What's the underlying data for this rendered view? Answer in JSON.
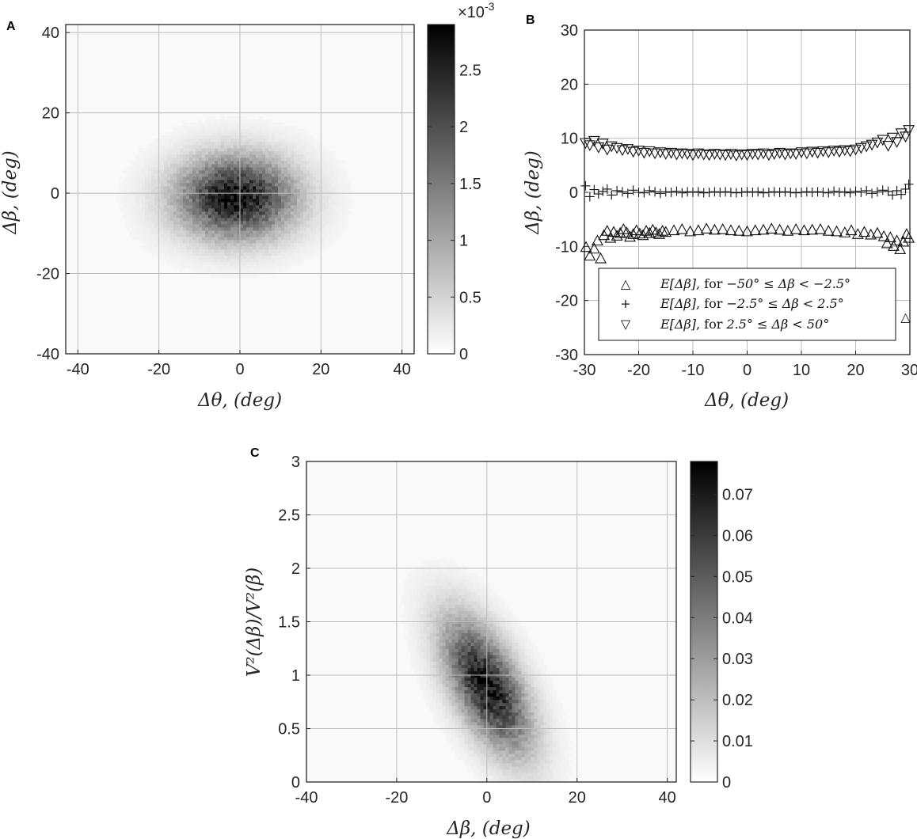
{
  "chart_data": [
    {
      "panel": "A",
      "type": "heatmap",
      "xlabel": "Δθ, (deg)",
      "ylabel": "Δβ, (deg)",
      "xlim": [
        -43,
        43
      ],
      "ylim": [
        -40,
        42
      ],
      "xticks": [
        -40,
        -20,
        0,
        20,
        40
      ],
      "yticks": [
        -40,
        -20,
        0,
        20,
        40
      ],
      "grid": true,
      "density": {
        "center": [
          -1,
          -1
        ],
        "sd": [
          10,
          7
        ],
        "correlation": 0,
        "peak": 0.0027
      },
      "colorbar": {
        "min": 0,
        "max": 0.0029,
        "ticks": [
          0,
          0.5,
          1,
          1.5,
          2,
          2.5
        ],
        "multiplier": "×10",
        "exponent": "-3"
      }
    },
    {
      "panel": "B",
      "type": "scatter",
      "xlabel": "Δθ, (deg)",
      "ylabel": "Δβ, (deg)",
      "xlim": [
        -30,
        30
      ],
      "ylim": [
        -30,
        30
      ],
      "xticks": [
        -30,
        -20,
        -10,
        0,
        10,
        20,
        30
      ],
      "yticks": [
        -30,
        -20,
        -10,
        0,
        10,
        20,
        30
      ],
      "grid": true,
      "legend_position": "bottom-right",
      "series": [
        {
          "name": "E[Δβ], for −50° ≤ Δβ < −2.5°",
          "marker": "triangle-up",
          "x": [
            -29.7,
            -29,
            -28.2,
            -27.6,
            -27,
            -26.4,
            -25.8,
            -25.2,
            -24.6,
            -24,
            -23.4,
            -22.8,
            -22.2,
            -21.6,
            -21,
            -20.4,
            -19.8,
            -19.2,
            -18.6,
            -18,
            -17.4,
            -16.8,
            -16.2,
            -15.6,
            -15,
            -13.5,
            -12,
            -10.5,
            -9,
            -7.5,
            -6,
            -4.5,
            -3,
            -1.5,
            0,
            1.5,
            3,
            4.5,
            6,
            7.5,
            9,
            10.5,
            12,
            13.5,
            15,
            16.5,
            18,
            19.2,
            20.4,
            21.6,
            22.8,
            24,
            25.2,
            25.8,
            26.4,
            27,
            27.6,
            28.2,
            28.8,
            29.4,
            29.8
          ],
          "y": [
            -10.2,
            -11.8,
            -10.5,
            -9,
            -12.3,
            -8,
            -7.2,
            -8.5,
            -7.4,
            -8.1,
            -7.6,
            -6.9,
            -7.5,
            -8.3,
            -7.8,
            -7.1,
            -7.7,
            -8,
            -7.2,
            -7.6,
            -7,
            -7.5,
            -7.8,
            -7.2,
            -7.4,
            -7.1,
            -6.9,
            -7.3,
            -7.1,
            -6.8,
            -7,
            -6.9,
            -7.1,
            -7.2,
            -7.3,
            -7.1,
            -7,
            -6.8,
            -7,
            -7.2,
            -6.9,
            -7.1,
            -7,
            -6.9,
            -7.2,
            -7.3,
            -7.5,
            -7.1,
            -7.8,
            -7.4,
            -7.9,
            -7.6,
            -8.2,
            -9.5,
            -8.4,
            -10,
            -9,
            -10.6,
            -9.2,
            -7.8,
            -8.5
          ]
        },
        {
          "name": "E[Δβ], for −2.5° ≤ Δβ < 2.5°",
          "marker": "plus",
          "x": [
            -29.8,
            -29,
            -28.2,
            -27.4,
            -26.6,
            -25.8,
            -25,
            -24,
            -23,
            -22,
            -21,
            -20,
            -19,
            -18,
            -17,
            -16,
            -15,
            -14,
            -13,
            -12,
            -11,
            -10,
            -9,
            -8,
            -7,
            -6,
            -5,
            -4,
            -3,
            -2,
            -1,
            0,
            1,
            2,
            3,
            4,
            5,
            6,
            7,
            8,
            9,
            10,
            11,
            12,
            13,
            14,
            15,
            16,
            17,
            18,
            19,
            20,
            21,
            22,
            23,
            24,
            25,
            26,
            26.8,
            27.6,
            28.4,
            29.2,
            29.8
          ],
          "y": [
            1.2,
            -0.8,
            0.5,
            -0.3,
            0.2,
            0.6,
            -0.5,
            0.3,
            0.1,
            -0.2,
            0.4,
            0,
            -0.1,
            0.3,
            0.1,
            -0.2,
            0.1,
            0,
            0.2,
            -0.1,
            0.1,
            0,
            0.1,
            -0.1,
            0,
            0.1,
            0,
            0.1,
            0,
            -0.1,
            0,
            0.1,
            0,
            0.1,
            -0.1,
            0,
            0.1,
            0,
            0.1,
            0,
            -0.1,
            0,
            0.1,
            0,
            0.1,
            0,
            -0.1,
            0.2,
            0,
            0.1,
            -0.1,
            0.2,
            0,
            0.3,
            -0.2,
            0.1,
            0.4,
            0.2,
            -0.5,
            0.3,
            -0.4,
            0.6,
            1.5
          ]
        },
        {
          "name": "E[Δβ], for 2.5° ≤ Δβ < 50°",
          "marker": "triangle-down",
          "x": [
            -29.8,
            -29,
            -28.2,
            -27.4,
            -26.6,
            -25.8,
            -25,
            -24,
            -23,
            -22,
            -21,
            -20,
            -19,
            -18,
            -17,
            -16,
            -15,
            -14,
            -13,
            -12,
            -11,
            -10,
            -9,
            -8,
            -7,
            -6,
            -5,
            -4,
            -3,
            -2,
            -1,
            0,
            1,
            2,
            3,
            4,
            5,
            6,
            7,
            8,
            9,
            10,
            11,
            12,
            13,
            14,
            15,
            16,
            17,
            18,
            19,
            20,
            21,
            22,
            23,
            24,
            25,
            26,
            26.8,
            27.6,
            28.4,
            29.2,
            29.8
          ],
          "y": [
            9.2,
            8.8,
            9.6,
            8.4,
            9.1,
            8,
            8.6,
            8.3,
            7.9,
            8.1,
            7.6,
            7.8,
            7.4,
            7.7,
            7.3,
            7.5,
            7.2,
            7.4,
            7.1,
            7.3,
            7.2,
            7,
            7.3,
            7.1,
            7,
            7.2,
            7.1,
            7,
            7.2,
            6.9,
            7.1,
            7,
            7.2,
            7.1,
            7.3,
            7,
            7.2,
            7.4,
            7.1,
            7.3,
            7.2,
            7.5,
            7.3,
            7.6,
            7.4,
            7.7,
            7.5,
            7.8,
            7.6,
            7.9,
            7.7,
            8,
            8.3,
            8.6,
            8.9,
            9.3,
            9.8,
            8.7,
            10.2,
            9.4,
            11,
            10.4,
            11.6
          ]
        }
      ],
      "annotations": [
        {
          "text": "△",
          "x": 29.2,
          "y": -23
        }
      ]
    },
    {
      "panel": "C",
      "type": "heatmap",
      "xlabel": "Δβ, (deg)",
      "ylabel": "V²(Δβ)/V²(β̄)",
      "xlim": [
        -40,
        42
      ],
      "ylim": [
        0,
        3
      ],
      "xticks": [
        -40,
        -20,
        0,
        20,
        40
      ],
      "yticks": [
        0,
        0.5,
        1,
        1.5,
        2,
        2.5,
        3
      ],
      "grid": true,
      "density": {
        "center": [
          0,
          0.9
        ],
        "sd": [
          6.5,
          0.42
        ],
        "correlation": -0.6,
        "peak": 0.072
      },
      "colorbar": {
        "min": 0,
        "max": 0.078,
        "ticks": [
          0,
          0.01,
          0.02,
          0.03,
          0.04,
          0.05,
          0.06,
          0.07
        ]
      }
    }
  ],
  "labels": {
    "a": "A",
    "b": "B",
    "c": "C"
  },
  "legend": {
    "entries": [
      {
        "symbol": "△",
        "expr": "E[Δβ]",
        "text": ", for ",
        "cond": "−50° ≤ Δβ < −2.5°"
      },
      {
        "symbol": "+",
        "expr": "E[Δβ]",
        "text": ", for ",
        "cond": "−2.5° ≤ Δβ < 2.5°"
      },
      {
        "symbol": "▽",
        "expr": "E[Δβ]",
        "text": ", for ",
        "cond": "2.5° ≤ Δβ < 50°"
      }
    ]
  },
  "colors": {
    "heat_high": "#000000",
    "heat_low": "#ffffff",
    "frame": "#262626",
    "grid": "#bdbdbd"
  }
}
